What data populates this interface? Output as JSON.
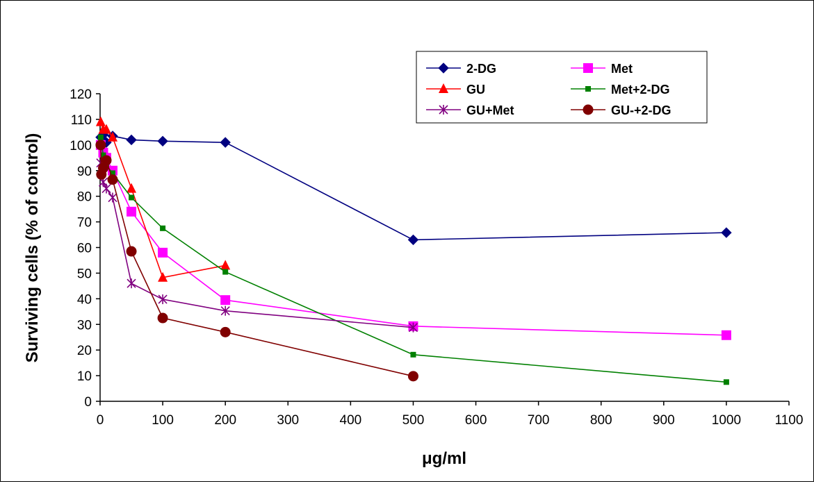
{
  "chart_data": {
    "type": "line",
    "title": "",
    "xlabel": "μg/ml",
    "ylabel": "Surviving cells (% of control)",
    "xlim": [
      0,
      1100
    ],
    "ylim": [
      0,
      120
    ],
    "xticks": [
      0,
      100,
      200,
      300,
      400,
      500,
      600,
      700,
      800,
      900,
      1000,
      1100
    ],
    "yticks": [
      0,
      10,
      20,
      30,
      40,
      50,
      60,
      70,
      80,
      90,
      100,
      110,
      120
    ],
    "grid": false,
    "legend_position": "top-right",
    "series": [
      {
        "name": "2-DG",
        "color": "#000080",
        "marker": "diamond",
        "x": [
          1,
          5,
          10,
          20,
          50,
          100,
          200,
          500,
          1000
        ],
        "y": [
          103,
          104,
          101,
          103.5,
          102,
          101.5,
          101,
          63,
          65.8
        ]
      },
      {
        "name": "Met",
        "color": "#ff00ff",
        "marker": "square",
        "x": [
          1,
          5,
          10,
          20,
          50,
          100,
          200,
          500,
          1000
        ],
        "y": [
          100,
          97,
          95,
          90,
          74,
          58,
          39.5,
          29.3,
          25.8
        ]
      },
      {
        "name": "GU",
        "color": "#ff0000",
        "marker": "triangle",
        "x": [
          1,
          5,
          10,
          20,
          50,
          100,
          200
        ],
        "y": [
          109,
          106,
          106,
          103,
          83,
          48.3,
          53
        ]
      },
      {
        "name": "Met+2-DG",
        "color": "#008000",
        "marker": "small-square",
        "x": [
          1,
          5,
          10,
          20,
          50,
          100,
          200,
          500,
          1000
        ],
        "y": [
          103,
          96,
          92,
          89,
          79.5,
          67.5,
          50.5,
          18.2,
          7.5
        ]
      },
      {
        "name": "GU+Met",
        "color": "#800080",
        "marker": "star",
        "x": [
          1,
          5,
          10,
          20,
          50,
          100,
          200,
          500
        ],
        "y": [
          93,
          85.5,
          83,
          79.5,
          46,
          39.8,
          35.3,
          28.8
        ]
      },
      {
        "name": "GU-+2-DG",
        "color": "#800000",
        "marker": "circle",
        "x": [
          1,
          2,
          5,
          10,
          20,
          50,
          100,
          200,
          500
        ],
        "y": [
          100,
          88.5,
          91,
          94,
          86.5,
          58.5,
          32.5,
          27,
          9.8
        ]
      }
    ]
  }
}
